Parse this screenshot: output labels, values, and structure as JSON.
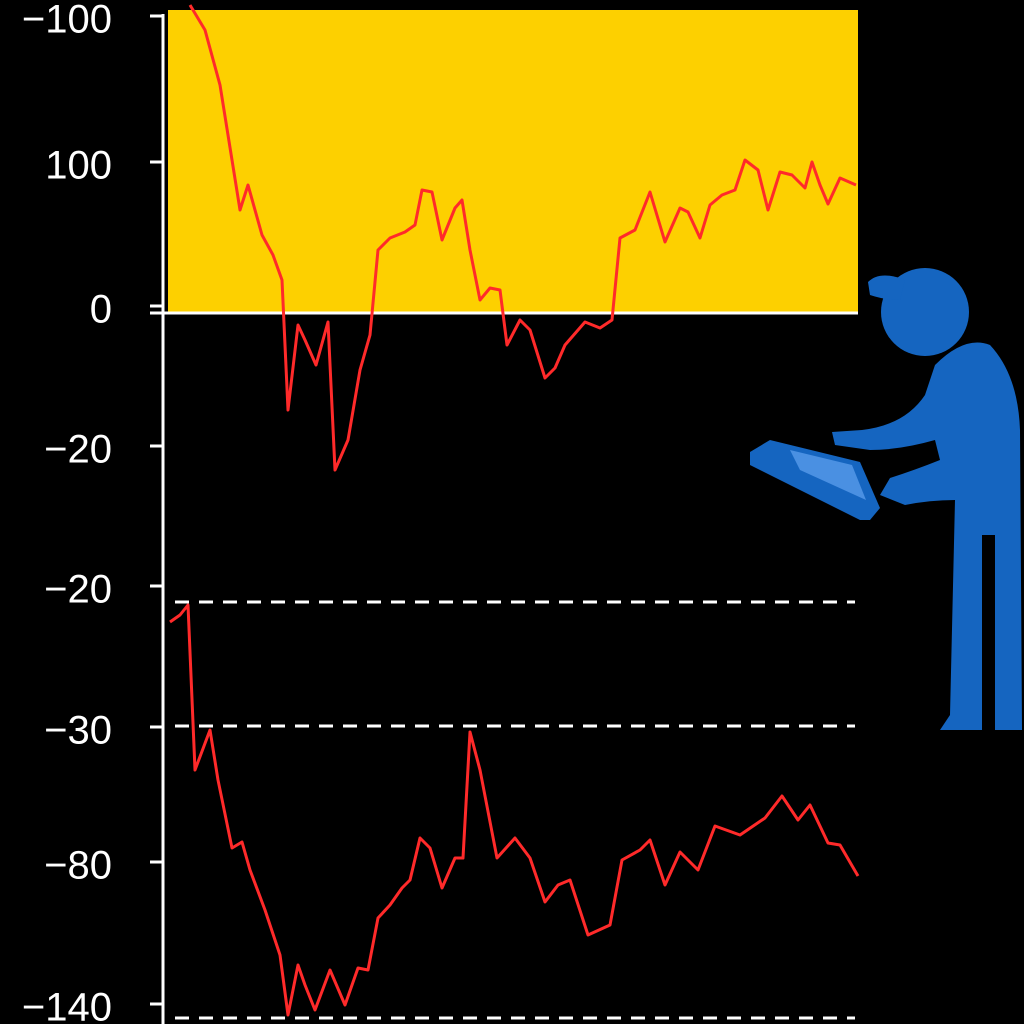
{
  "axis_labels": [
    "−100",
    "100",
    "0",
    "−20",
    "−20",
    "−30",
    "−80",
    "−140"
  ]
}
